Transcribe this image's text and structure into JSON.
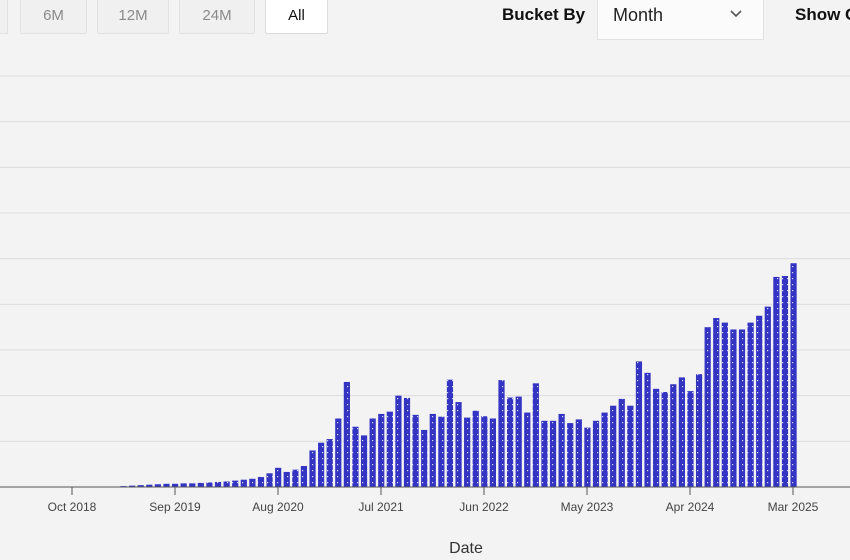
{
  "toolbar": {
    "range_buttons": [
      "6M",
      "12M",
      "24M",
      "All"
    ],
    "active_range": "All",
    "bucket_label": "Bucket By",
    "bucket_value": "Month",
    "show_label": "Show C"
  },
  "colors": {
    "bar": "#3434c4",
    "grid": "#dcdcdc",
    "background": "#f3f3f3"
  },
  "chart_data": {
    "type": "bar",
    "xlabel": "Date",
    "ylabel": "",
    "x_tick_labels": [
      "Oct 2018",
      "Sep 2019",
      "Aug 2020",
      "Jul 2021",
      "Jun 2022",
      "May 2023",
      "Apr 2024",
      "Mar 2025"
    ],
    "start_month": "2018-02",
    "ylim": [
      0,
      9
    ],
    "grid": true,
    "values": [
      0,
      0,
      0,
      0,
      0,
      0,
      0,
      0,
      0,
      0,
      0,
      0,
      0,
      0.01,
      0.02,
      0.03,
      0.04,
      0.05,
      0.06,
      0.07,
      0.07,
      0.08,
      0.08,
      0.09,
      0.1,
      0.11,
      0.12,
      0.14,
      0.16,
      0.18,
      0.22,
      0.3,
      0.42,
      0.33,
      0.38,
      0.46,
      0.8,
      0.97,
      1.05,
      1.5,
      2.3,
      1.32,
      1.13,
      1.5,
      1.6,
      1.65,
      2.0,
      1.95,
      1.58,
      1.25,
      1.6,
      1.54,
      2.35,
      1.86,
      1.52,
      1.67,
      1.55,
      1.5,
      2.34,
      1.96,
      1.98,
      1.63,
      2.27,
      1.45,
      1.45,
      1.6,
      1.4,
      1.48,
      1.3,
      1.45,
      1.63,
      1.78,
      1.93,
      1.78,
      2.75,
      2.5,
      2.15,
      2.08,
      2.25,
      2.4,
      2.1,
      2.47,
      3.5,
      3.7,
      3.6,
      3.45,
      3.45,
      3.6,
      3.75,
      3.95,
      4.6,
      4.62,
      4.9
    ]
  }
}
